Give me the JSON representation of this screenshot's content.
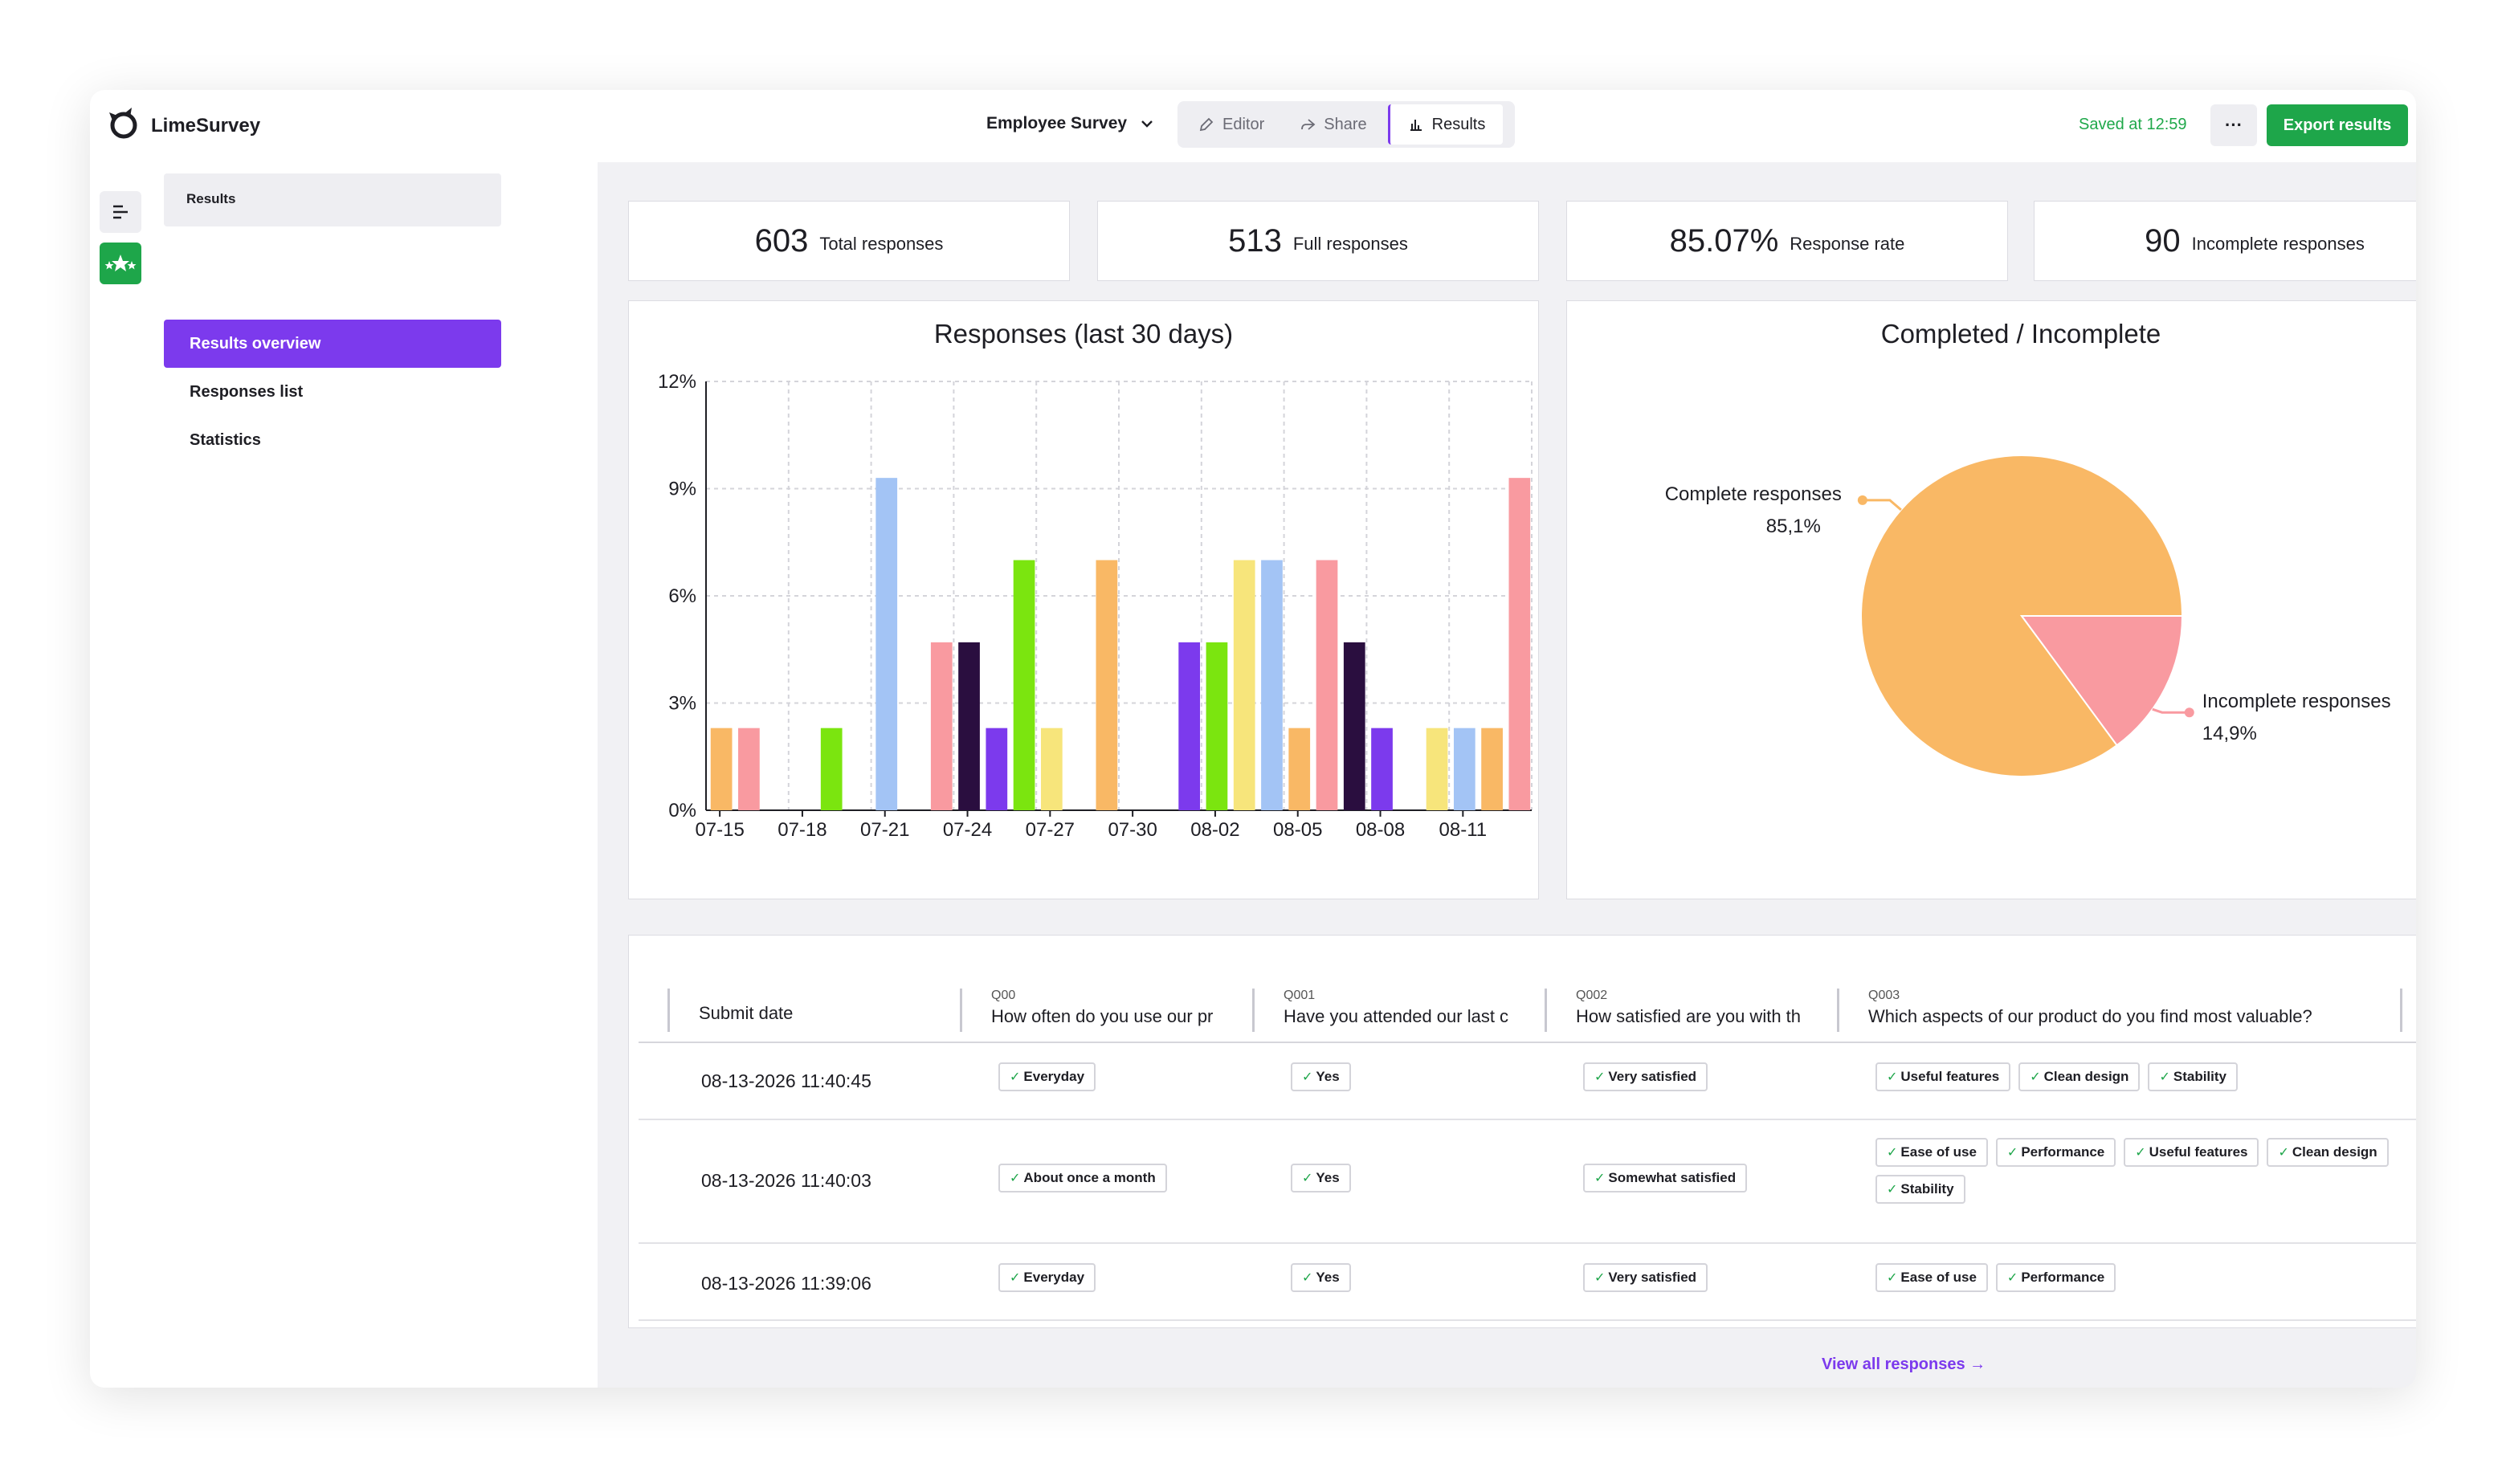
{
  "app": {
    "name": "LimeSurvey"
  },
  "header": {
    "survey_name": "Employee Survey",
    "tabs": [
      {
        "label": "Editor",
        "icon": "pencil-icon"
      },
      {
        "label": "Share",
        "icon": "share-icon"
      },
      {
        "label": "Results",
        "icon": "bar-chart-icon"
      }
    ],
    "active_tab": "Results",
    "saved_text": "Saved at 12:59",
    "more_label": "···",
    "export_label": "Export results"
  },
  "sidebar": {
    "heading": "Results",
    "items": [
      {
        "label": "Results overview",
        "active": true
      },
      {
        "label": "Responses list",
        "active": false
      },
      {
        "label": "Statistics",
        "active": false
      }
    ]
  },
  "kpis": [
    {
      "value": "603",
      "label": "Total responses"
    },
    {
      "value": "513",
      "label": "Full responses"
    },
    {
      "value": "85.07%",
      "label": "Response rate"
    },
    {
      "value": "90",
      "label": "Incomplete responses"
    }
  ],
  "chart_data": [
    {
      "type": "bar",
      "title": "Responses (last 30 days)",
      "xlabel": "",
      "ylabel": "",
      "ylim": [
        0,
        12
      ],
      "y_ticks": [
        "0%",
        "3%",
        "6%",
        "9%",
        "12%"
      ],
      "x_tick_labels": [
        "07-15",
        "07-18",
        "07-21",
        "07-24",
        "07-27",
        "07-30",
        "08-02",
        "08-05",
        "08-08",
        "08-11"
      ],
      "grid": true,
      "legend": "none",
      "categories": [
        "07-15",
        "07-16",
        "07-17",
        "07-18",
        "07-19",
        "07-20",
        "07-21",
        "07-22",
        "07-23",
        "07-24",
        "07-25",
        "07-26",
        "07-27",
        "07-28",
        "07-29",
        "07-30",
        "07-31",
        "08-01",
        "08-02",
        "08-03",
        "08-04",
        "08-05",
        "08-06",
        "08-07",
        "08-08",
        "08-09",
        "08-10",
        "08-11",
        "08-12",
        "08-13"
      ],
      "values": [
        2.3,
        2.3,
        0,
        0,
        2.3,
        0,
        9.3,
        0,
        4.7,
        4.7,
        2.3,
        7.0,
        2.3,
        0,
        7.0,
        0,
        0,
        4.7,
        4.7,
        7.0,
        7.0,
        2.3,
        7.0,
        4.7,
        2.3,
        0,
        2.3,
        2.3,
        2.3,
        9.3
      ],
      "colors": [
        "#f9b865",
        "#f99aa0",
        "#f9b865",
        "#f99aa0",
        "#7be50f",
        "#a3c4f5",
        "#a3c4f5",
        "#f99aa0",
        "#f99aa0",
        "#2a0e3f",
        "#7c3aed",
        "#7be50f",
        "#f7e57b",
        "#f9b865",
        "#f9b865",
        "#2a0e3f",
        "#7c3aed",
        "#7c3aed",
        "#7be50f",
        "#f7e57b",
        "#a3c4f5",
        "#f9b865",
        "#f99aa0",
        "#2a0e3f",
        "#7c3aed",
        "#f7e57b",
        "#f7e57b",
        "#a3c4f5",
        "#f9b865",
        "#f99aa0"
      ]
    },
    {
      "type": "pie",
      "title": "Completed / Incomplete",
      "legend": "none",
      "slices": [
        {
          "label": "Complete responses",
          "value": 85.1,
          "value_label": "85,1%",
          "color": "#f9b865"
        },
        {
          "label": "Incomplete responses",
          "value": 14.9,
          "value_label": "14,9%",
          "color": "#f99aa0"
        }
      ]
    }
  ],
  "table": {
    "columns": [
      {
        "code": "",
        "text": "Submit date"
      },
      {
        "code": "Q00",
        "text": "How often do you use our pr"
      },
      {
        "code": "Q001",
        "text": "Have you attended our last c"
      },
      {
        "code": "Q002",
        "text": "How satisfied are you with th"
      },
      {
        "code": "Q003",
        "text": "Which aspects of our product do you find most valuable?"
      }
    ],
    "rows": [
      {
        "date": "08-13-2026 11:40:45",
        "q00": [
          "Everyday"
        ],
        "q001": [
          "Yes"
        ],
        "q002": [
          "Very satisfied"
        ],
        "q003": [
          "Useful features",
          "Clean design",
          "Stability"
        ]
      },
      {
        "date": "08-13-2026 11:40:03",
        "q00": [
          "About once a month"
        ],
        "q001": [
          "Yes"
        ],
        "q002": [
          "Somewhat satisfied"
        ],
        "q003": [
          "Ease of use",
          "Performance",
          "Useful features",
          "Clean design",
          "Stability"
        ]
      },
      {
        "date": "08-13-2026 11:39:06",
        "q00": [
          "Everyday"
        ],
        "q001": [
          "Yes"
        ],
        "q002": [
          "Very satisfied"
        ],
        "q003": [
          "Ease of use",
          "Performance"
        ]
      }
    ],
    "view_all_label": "View all responses →"
  }
}
